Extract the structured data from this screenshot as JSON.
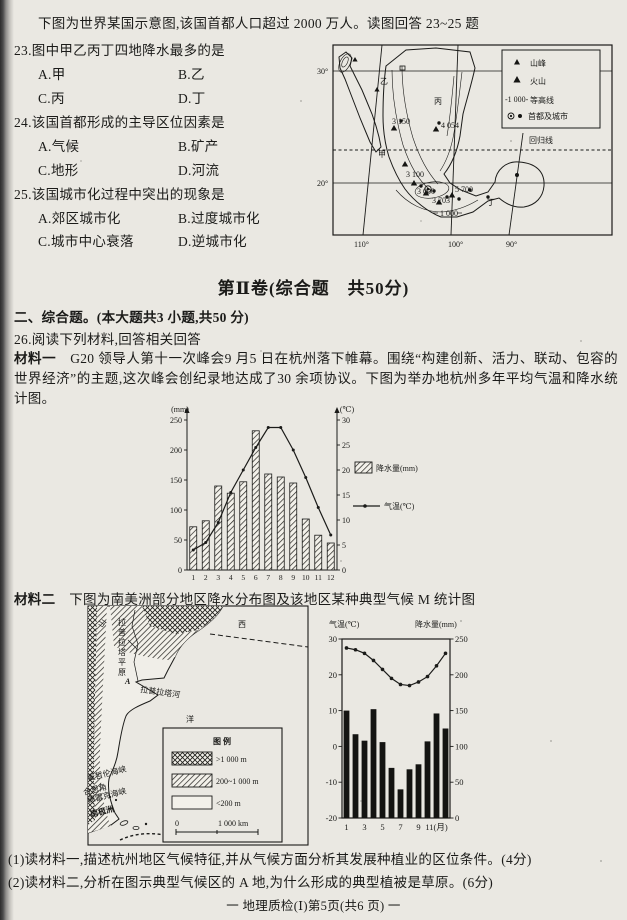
{
  "page": {
    "footer": "一 地理质检(Ⅰ)第5页(共6 页) 一",
    "paper_color": "#eae8e2",
    "ink_color": "#1b1b19"
  },
  "intro_line": "下图为世界某国示意图,该国首都人口超过 2000 万人。读图回答 23~25 题",
  "questions": [
    {
      "stem": "23.图中甲乙丙丁四地降水最多的是",
      "options": [
        "A.甲",
        "B.乙",
        "C.丙",
        "D.丁"
      ]
    },
    {
      "stem": "24.该国首都形成的主导区位因素是",
      "options": [
        "A.气候",
        "B.矿产",
        "C.地形",
        "D.河流"
      ]
    },
    {
      "stem": "25.该国城市化过程中突出的现象是",
      "options": [
        "A.郊区城市化",
        "B.过度城市化",
        "C.城市中心衰落",
        "D.逆城市化"
      ]
    }
  ],
  "mexico_map": {
    "lat_labels": [
      "30°",
      "20°"
    ],
    "lon_labels": [
      "110°",
      "100°",
      "90°"
    ],
    "site_labels": [
      "甲",
      "乙",
      "丙",
      "丁"
    ],
    "elevation_labels": [
      "3 150",
      "4 054",
      "3 100",
      "3 000",
      "5 700",
      "3 703"
    ],
    "contour_text": "1 000",
    "tropic_label": "回归线",
    "legend": [
      {
        "label": "山峰"
      },
      {
        "label": "火山"
      },
      {
        "label": "等高线",
        "value": "-1 000-"
      },
      {
        "label": "首都及城市"
      }
    ]
  },
  "section2": {
    "title": "第Ⅱ卷(综合题　共50分)",
    "subtitle": "二、综合题。(本大题共3 小题,共50 分)",
    "q26": "26.阅读下列材料,回答相关回答",
    "material1_label": "材料一",
    "material1_text": "G20 领导人第十一次峰会9 月5 日在杭州落下帷幕。围绕“构建创新、活力、联动、包容的世界经济”的主题,这次峰会创纪录地达成了30 余项协议。下图为举办地杭州多年平均气温和降水统计图。",
    "material2_label": "材料二",
    "material2_text": "下图为南美洲部分地区降水分布图及该地区某种典型气候 M 统计图",
    "sub_questions": [
      "(1)读材料一,描述杭州地区气候特征,并从气候方面分析其发展种植业的区位条件。(4分)",
      "(2)读材料二,分析在图示典型气候区的 A 地,为什么形成的典型植被是草原。(6分)"
    ]
  },
  "sa_map": {
    "labels": {
      "mountain": "山",
      "region_west": "西",
      "plain_vertical": "拉普拉塔平原",
      "site_a": "A",
      "river": "拉普拉塔河",
      "ocean": "洋",
      "strait_magellan": "麦哲伦海峡",
      "cape_horn": "合恩角",
      "drake_passage": "德雷克海峡",
      "antarctica": "南极洲"
    },
    "legend": {
      "title": "图  例",
      "items": [
        ">1 000 m",
        "200~1 000 m",
        "<200 m"
      ],
      "scale_start": "0",
      "scale_end": "1 000 km"
    }
  },
  "chart_data": [
    {
      "id": "hangzhou-climate",
      "type": "bar+line",
      "title": "杭州多年平均气温和降水统计图",
      "categories": [
        1,
        2,
        3,
        4,
        5,
        6,
        7,
        8,
        9,
        10,
        11,
        12
      ],
      "series": [
        {
          "name": "降水量(mm)",
          "type": "bar",
          "axis": "left",
          "values": [
            72,
            82,
            140,
            128,
            147,
            232,
            160,
            155,
            145,
            85,
            58,
            45
          ]
        },
        {
          "name": "气温(℃)",
          "type": "line",
          "axis": "right",
          "values": [
            4,
            5.5,
            9.5,
            15.5,
            20,
            24.5,
            28.5,
            28.5,
            24,
            18.5,
            12.5,
            7
          ]
        }
      ],
      "left_axis": {
        "label": "(mm)",
        "min": 0,
        "max": 250,
        "ticks": [
          0,
          50,
          100,
          150,
          200,
          250
        ]
      },
      "right_axis": {
        "label": "(℃)",
        "min": 0,
        "max": 30,
        "ticks": [
          0,
          5,
          10,
          15,
          20,
          25,
          30
        ]
      },
      "legend_position": "right"
    },
    {
      "id": "climate-M",
      "type": "bar+line",
      "title": "典型气候 M 统计图",
      "categories": [
        1,
        2,
        3,
        4,
        5,
        6,
        7,
        8,
        9,
        10,
        11,
        12
      ],
      "x_tick_labels": [
        "1",
        "3",
        "5",
        "7",
        "9",
        "11(月)"
      ],
      "series": [
        {
          "name": "降水量(mm)",
          "type": "bar",
          "axis": "right",
          "values": [
            150,
            117,
            108,
            152,
            106,
            70,
            40,
            68,
            75,
            107,
            146,
            125
          ]
        },
        {
          "name": "气温(℃)",
          "type": "line",
          "axis": "left",
          "values": [
            27.5,
            27,
            26,
            24,
            21.5,
            19,
            17.3,
            17,
            18,
            19.5,
            22.5,
            26
          ]
        }
      ],
      "left_axis": {
        "label": "气温(℃)",
        "min": -20,
        "max": 30,
        "ticks": [
          30,
          20,
          10,
          0,
          -10,
          -20
        ]
      },
      "right_axis": {
        "label": "降水量(mm)",
        "min": 0,
        "max": 250,
        "ticks": [
          250,
          200,
          150,
          100,
          50,
          0
        ]
      },
      "frame": "box"
    }
  ]
}
